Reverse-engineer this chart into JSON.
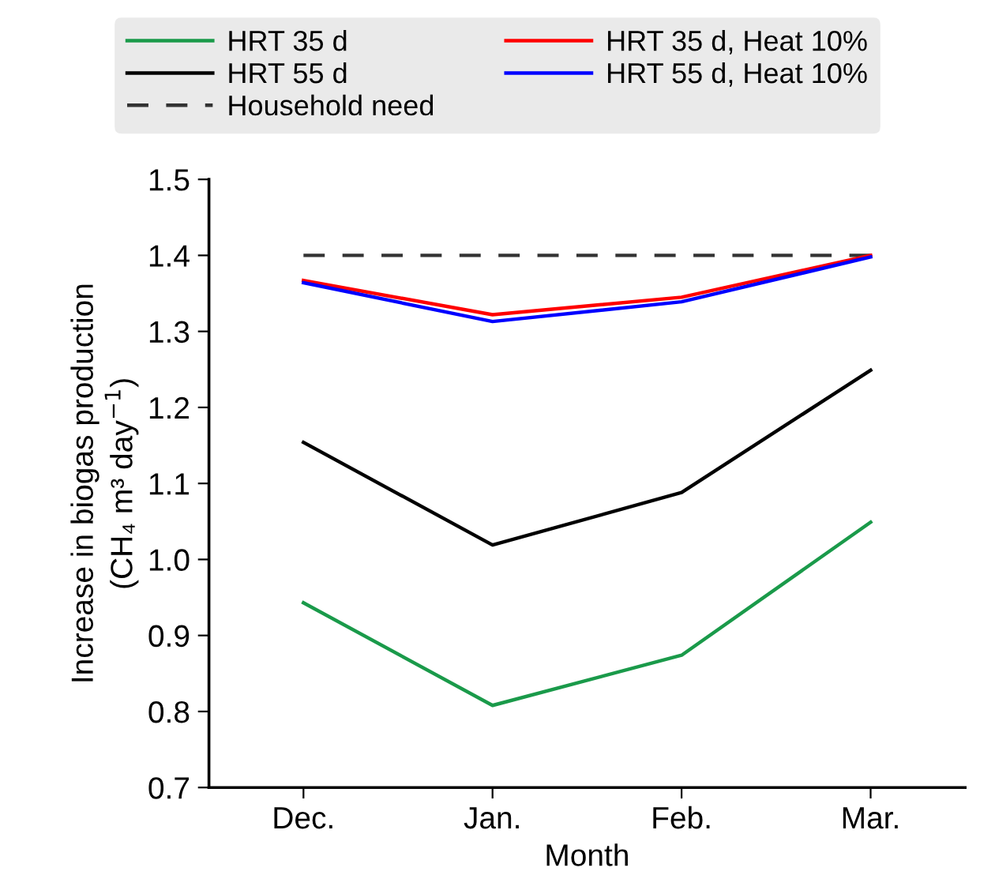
{
  "chart_data": {
    "type": "line",
    "xlabel": "Month",
    "ylabel": "Increase in biogas production\n(CH₄ m³ day$^{−1}$)",
    "categories": [
      "Dec.",
      "Jan.",
      "Feb.",
      "Mar."
    ],
    "ylim": [
      0.7,
      1.5
    ],
    "yticks": [
      {
        "value": 0.7,
        "label": "0.7"
      },
      {
        "value": 0.8,
        "label": "0.8"
      },
      {
        "value": 0.9,
        "label": "0.9"
      },
      {
        "value": 1.0,
        "label": "1.0"
      },
      {
        "value": 1.1,
        "label": "1.1"
      },
      {
        "value": 1.2,
        "label": "1.2"
      },
      {
        "value": 1.3,
        "label": "1.3"
      },
      {
        "value": 1.4,
        "label": "1.4"
      },
      {
        "value": 1.5,
        "label": "1.5"
      }
    ],
    "grid": false,
    "legend": "top",
    "marker": "none",
    "series": [
      {
        "name": "HRT 35 d",
        "color": "#1a9a4a",
        "values": [
          0.943,
          0.808,
          0.874,
          1.049
        ]
      },
      {
        "name": "HRT 55 d",
        "color": "#000000",
        "values": [
          1.154,
          1.019,
          1.088,
          1.249
        ]
      },
      {
        "name": "Household need",
        "color": "#333333",
        "line_style": "dashed",
        "values": [
          1.4,
          1.4,
          1.4,
          1.4
        ]
      },
      {
        "name": "HRT 35 d, Heat 10%",
        "color": "#ff0000",
        "values": [
          1.367,
          1.322,
          1.345,
          1.4
        ]
      },
      {
        "name": "HRT 55 d, Heat 10%",
        "color": "#0000ff",
        "values": [
          1.364,
          1.313,
          1.339,
          1.398
        ]
      }
    ]
  }
}
